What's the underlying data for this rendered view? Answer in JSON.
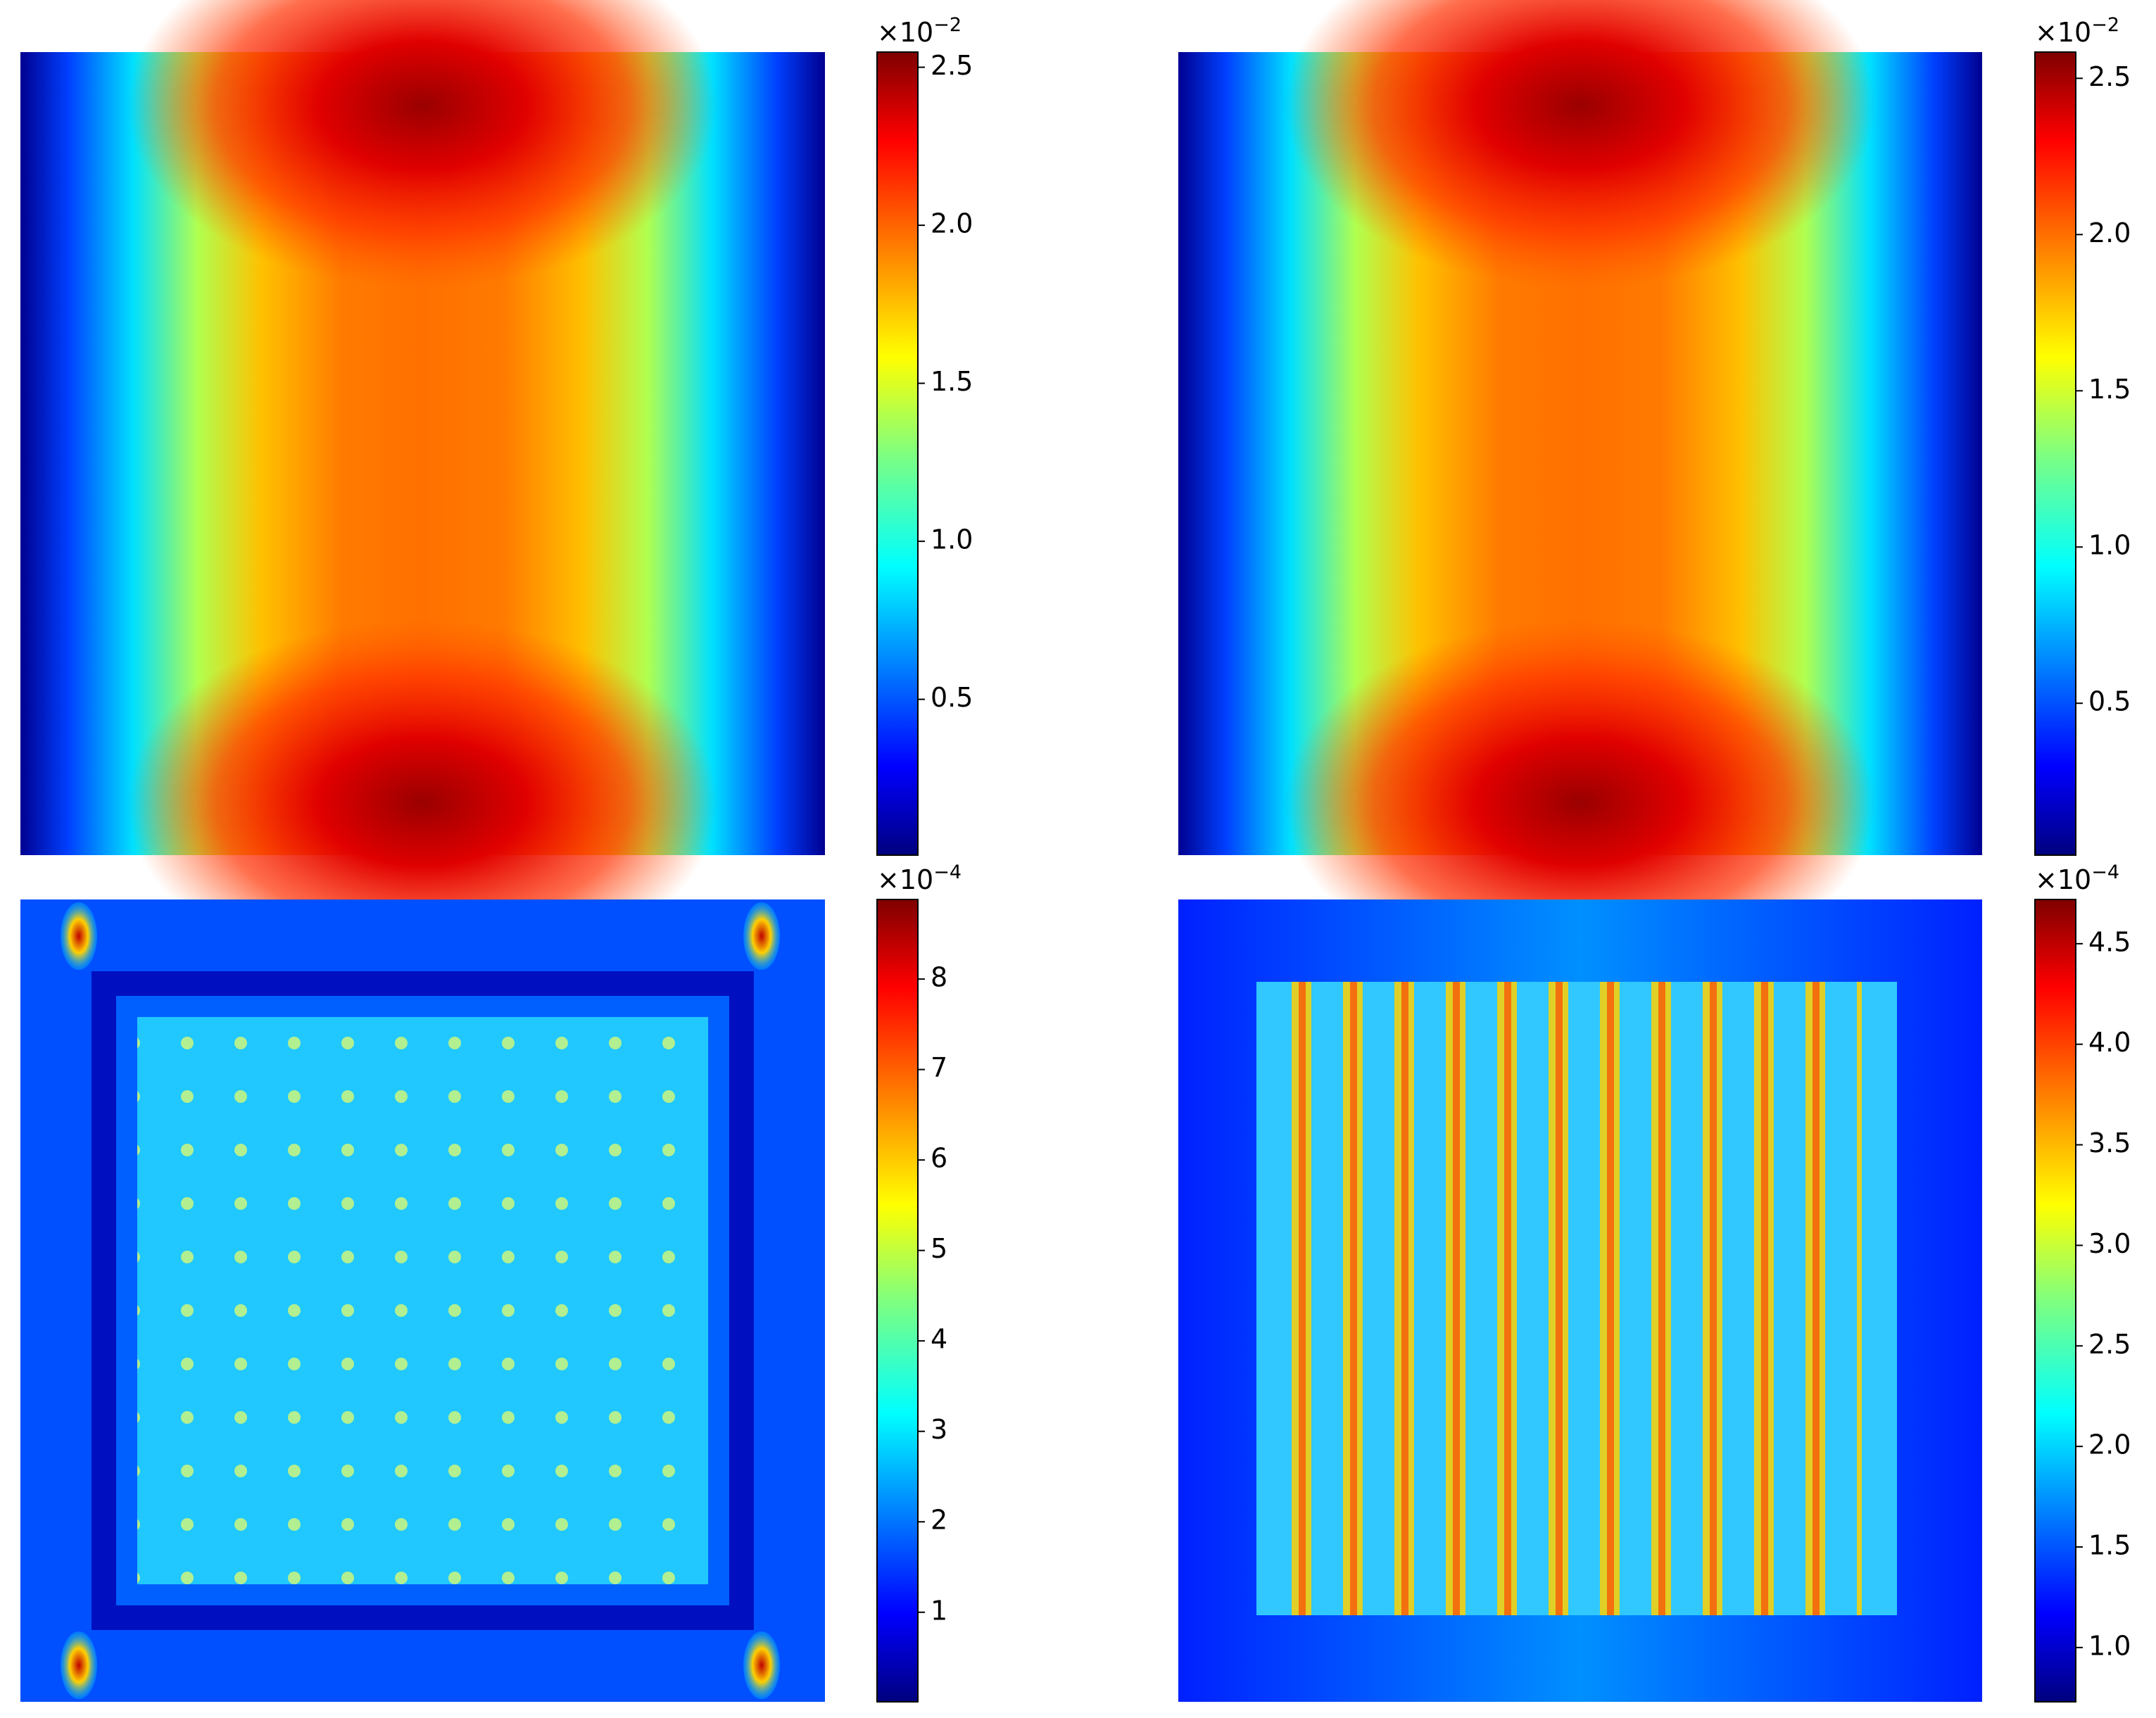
{
  "chart_data": [
    {
      "type": "heatmap",
      "colorbar": {
        "lim": [
          0.007,
          2.548
        ],
        "ticks": [
          0.5,
          {
            "value": 1,
            "label": "1.0"
          },
          1.5,
          {
            "value": 2,
            "label": "2.0"
          },
          2.5
        ],
        "offset_base": "×10",
        "offset_exponent": "−2"
      }
    },
    {
      "type": "heatmap",
      "colorbar": {
        "lim": [
          0.014,
          2.584
        ],
        "ticks": [
          0.5,
          {
            "value": 1,
            "label": "1.0"
          },
          1.5,
          {
            "value": 2,
            "label": "2.0"
          },
          2.5
        ],
        "offset_base": "×10",
        "offset_exponent": "−2"
      }
    },
    {
      "type": "heatmap",
      "colorbar": {
        "lim": [
          0.01,
          8.88
        ],
        "ticks": [
          1,
          2,
          3,
          4,
          5,
          6,
          7,
          8
        ],
        "offset_base": "×10",
        "offset_exponent": "−4"
      }
    },
    {
      "type": "heatmap",
      "colorbar": {
        "lim": [
          0.73,
          4.72
        ],
        "ticks": [
          {
            "value": 1,
            "label": "1.0"
          },
          1.5,
          {
            "value": 2,
            "label": "2.0"
          },
          2.5,
          {
            "value": 3,
            "label": "3.0"
          },
          3.5,
          {
            "value": 4,
            "label": "4.0"
          },
          4.5
        ],
        "offset_base": "×10",
        "offset_exponent": "−4"
      }
    }
  ]
}
